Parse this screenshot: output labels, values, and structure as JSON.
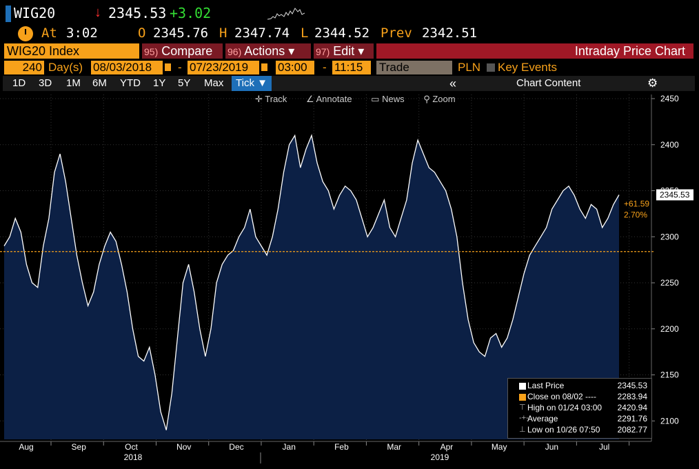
{
  "header": {
    "ticker": "WIG20",
    "arrow": "↓",
    "last_price": "2345.53",
    "change": "+3.02"
  },
  "quote": {
    "at_label": "At",
    "time": "3:02",
    "open_label": "O",
    "open": "2345.76",
    "high_label": "H",
    "high": "2347.74",
    "low_label": "L",
    "low": "2344.52",
    "prev_label": "Prev",
    "prev": "2342.51"
  },
  "toolbar": {
    "index_name": "WIG20 Index",
    "compare_num": "95)",
    "compare_label": "Compare",
    "actions_num": "96)",
    "actions_label": "Actions ▾",
    "edit_num": "97)",
    "edit_label": "Edit ▾",
    "chart_title": "Intraday Price Chart"
  },
  "range": {
    "bars": "240",
    "unit": "Day(s)",
    "start_date": "08/03/2018",
    "dash": "-",
    "end_date": "07/23/2019",
    "start_time": "03:00",
    "end_time": "11:15",
    "event_type": "Trade",
    "currency": "PLN",
    "key_events": "Key Events"
  },
  "tabs": [
    "1D",
    "3D",
    "1M",
    "6M",
    "YTD",
    "1Y",
    "5Y",
    "Max",
    "Tick ▼"
  ],
  "chart_controls": {
    "collapse": "«",
    "chart_content": "Chart Content"
  },
  "chart_tools": [
    "Track",
    "Annotate",
    "News",
    "Zoom"
  ],
  "legend": {
    "last_price_label": "Last Price",
    "last_price_value": "2345.53",
    "close_label": "Close on 08/02 ----",
    "close_value": "2283.94",
    "high_label": "High on 01/24 03:00",
    "high_value": "2420.94",
    "avg_label": "Average",
    "avg_value": "2291.76",
    "low_label": "Low on 10/26 07:50",
    "low_value": "2082.77"
  },
  "annotations": {
    "last_price_tag": "2345.53",
    "change_abs": "+61.59",
    "change_pct": "2.70%"
  },
  "colors": {
    "accent_orange": "#f7a11a",
    "area_fill": "#0c2045",
    "price_line": "#ffffff",
    "reference_line": "#f7a11a",
    "toolbar_red": "#a01826",
    "active_tab": "#1e6fb8",
    "up": "#33dd33",
    "down": "#ff3030"
  },
  "chart_data": {
    "type": "area",
    "ylim": [
      2080,
      2450
    ],
    "yticks": [
      2100,
      2150,
      2200,
      2250,
      2300,
      2350,
      2400,
      2450
    ],
    "months": [
      "Aug",
      "Sep",
      "Oct",
      "Nov",
      "Dec",
      "Jan",
      "Feb",
      "Mar",
      "Apr",
      "May",
      "Jun",
      "Jul"
    ],
    "years": [
      "2018",
      "2019"
    ],
    "reference_close": 2283.94,
    "series": [
      {
        "values": [
          2290,
          2300,
          2320,
          2305,
          2270,
          2250,
          2245,
          2290,
          2320,
          2370,
          2390,
          2360,
          2320,
          2280,
          2250,
          2225,
          2240,
          2270,
          2290,
          2305,
          2295,
          2270,
          2240,
          2200,
          2170,
          2165,
          2180,
          2150,
          2110,
          2090,
          2130,
          2190,
          2250,
          2270,
          2240,
          2200,
          2170,
          2200,
          2250,
          2270,
          2280,
          2285,
          2300,
          2310,
          2330,
          2300,
          2290,
          2280,
          2300,
          2330,
          2370,
          2400,
          2410,
          2375,
          2395,
          2410,
          2380,
          2360,
          2350,
          2330,
          2345,
          2355,
          2350,
          2340,
          2320,
          2300,
          2310,
          2325,
          2340,
          2310,
          2300,
          2320,
          2340,
          2380,
          2405,
          2390,
          2375,
          2370,
          2360,
          2350,
          2330,
          2300,
          2250,
          2210,
          2185,
          2175,
          2170,
          2190,
          2195,
          2180,
          2190,
          2210,
          2235,
          2260,
          2280,
          2290,
          2300,
          2310,
          2330,
          2340,
          2350,
          2355,
          2345,
          2330,
          2320,
          2335,
          2330,
          2310,
          2320,
          2335,
          2345.53
        ]
      }
    ]
  }
}
